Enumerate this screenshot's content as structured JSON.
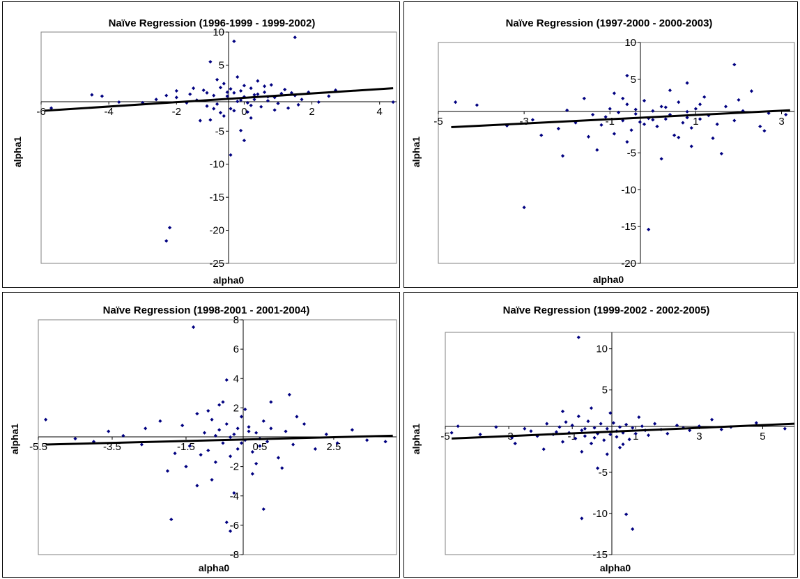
{
  "chart_data": [
    {
      "type": "scatter",
      "title": "Naïve Regression (1996-1999 - 1999-2002)",
      "xlabel": "alpha0",
      "ylabel": "alpha1",
      "xlim": [
        -6,
        4.5
      ],
      "ylim": [
        -25,
        10
      ],
      "xticks": [
        -6,
        -4,
        -2,
        0,
        2,
        4
      ],
      "yticks": [
        10,
        5,
        -5,
        -10,
        -15,
        -20,
        -25
      ],
      "marker_color": "#000080",
      "trendline": {
        "x": [
          -5.9,
          4.4
        ],
        "y": [
          -1.9,
          1.5
        ],
        "color": "#000000"
      },
      "points": [
        [
          -0.3,
          8.6
        ],
        [
          1.5,
          9.2
        ],
        [
          -1.0,
          5.5
        ],
        [
          -2.3,
          -21.6
        ],
        [
          -2.2,
          -19.6
        ],
        [
          -0.4,
          -8.6
        ],
        [
          0.0,
          -6.4
        ],
        [
          -4.5,
          0.5
        ],
        [
          -4.2,
          0.3
        ],
        [
          -3.7,
          -0.6
        ],
        [
          -5.7,
          -1.5
        ],
        [
          -2.6,
          -0.2
        ],
        [
          -2.0,
          0.1
        ],
        [
          -1.6,
          0.6
        ],
        [
          -1.4,
          -0.3
        ],
        [
          -1.2,
          1.2
        ],
        [
          -1.1,
          -1.2
        ],
        [
          -0.9,
          0.4
        ],
        [
          -0.8,
          -0.9
        ],
        [
          -0.7,
          1.6
        ],
        [
          -0.6,
          2.2
        ],
        [
          -0.5,
          0.3
        ],
        [
          -0.4,
          -1.6
        ],
        [
          -0.3,
          0.8
        ],
        [
          -0.2,
          -0.5
        ],
        [
          -0.1,
          1.1
        ],
        [
          0.0,
          0.2
        ],
        [
          0.1,
          -0.7
        ],
        [
          0.2,
          1.5
        ],
        [
          0.3,
          -0.2
        ],
        [
          0.4,
          0.6
        ],
        [
          0.5,
          -1.3
        ],
        [
          0.6,
          0.9
        ],
        [
          0.7,
          -0.4
        ],
        [
          0.8,
          2.0
        ],
        [
          0.9,
          0.1
        ],
        [
          1.0,
          -0.8
        ],
        [
          1.1,
          0.7
        ],
        [
          1.3,
          -1.5
        ],
        [
          1.5,
          0.4
        ],
        [
          1.7,
          -0.2
        ],
        [
          1.9,
          0.9
        ],
        [
          2.2,
          -0.6
        ],
        [
          2.5,
          0.3
        ],
        [
          2.7,
          1.2
        ],
        [
          4.4,
          -0.6
        ],
        [
          -1.3,
          -3.4
        ],
        [
          -1.0,
          -3.3
        ],
        [
          -0.6,
          -2.7
        ],
        [
          -0.1,
          -4.9
        ],
        [
          0.2,
          -3.0
        ],
        [
          -0.8,
          2.8
        ],
        [
          -0.2,
          3.2
        ],
        [
          0.4,
          2.6
        ],
        [
          -0.7,
          -2.2
        ],
        [
          0.1,
          -2.1
        ],
        [
          -2.0,
          1.1
        ],
        [
          -1.7,
          -0.7
        ],
        [
          -1.5,
          1.5
        ],
        [
          -0.9,
          -1.6
        ],
        [
          0.6,
          1.8
        ],
        [
          1.2,
          1.3
        ],
        [
          1.6,
          -1.0
        ],
        [
          -0.3,
          -1.9
        ],
        [
          0.0,
          1.9
        ],
        [
          0.3,
          0.5
        ],
        [
          -0.5,
          0.9
        ],
        [
          0.7,
          0.2
        ],
        [
          -0.1,
          -0.3
        ],
        [
          0.2,
          -1.1
        ],
        [
          -1.1,
          0.8
        ],
        [
          1.4,
          0.8
        ],
        [
          -0.4,
          1.4
        ],
        [
          0.9,
          -1.8
        ],
        [
          -3.0,
          -0.7
        ],
        [
          -2.3,
          0.4
        ]
      ]
    },
    {
      "type": "scatter",
      "title": "Naïve Regression (1997-2000 - 2000-2003)",
      "xlabel": "alpha0",
      "ylabel": "alpha1",
      "xlim": [
        -5,
        3.3
      ],
      "ylim": [
        -20,
        10
      ],
      "xticks": [
        -5,
        -3,
        -1,
        1,
        3
      ],
      "yticks": [
        10,
        5,
        -5,
        -10,
        -15,
        -20
      ],
      "marker_color": "#000080",
      "trendline": {
        "x": [
          -4.7,
          3.2
        ],
        "y": [
          -1.5,
          0.8
        ],
        "color": "#000000"
      },
      "points": [
        [
          -4.6,
          1.9
        ],
        [
          -4.1,
          1.5
        ],
        [
          -3.0,
          -12.4
        ],
        [
          -2.1,
          -5.4
        ],
        [
          -0.6,
          5.5
        ],
        [
          0.8,
          4.5
        ],
        [
          1.9,
          7.0
        ],
        [
          -0.1,
          -15.4
        ],
        [
          -2.6,
          -2.6
        ],
        [
          -2.2,
          -1.7
        ],
        [
          -1.8,
          -0.9
        ],
        [
          -1.6,
          2.4
        ],
        [
          -1.4,
          0.2
        ],
        [
          -1.2,
          -1.2
        ],
        [
          -1.0,
          1.0
        ],
        [
          -0.9,
          -2.4
        ],
        [
          -0.8,
          0.5
        ],
        [
          -0.7,
          -0.6
        ],
        [
          -0.6,
          1.6
        ],
        [
          -0.5,
          -1.9
        ],
        [
          -0.4,
          0.3
        ],
        [
          -0.3,
          -0.8
        ],
        [
          -0.2,
          2.1
        ],
        [
          -0.1,
          -0.3
        ],
        [
          0.0,
          0.7
        ],
        [
          0.1,
          -1.4
        ],
        [
          0.2,
          1.3
        ],
        [
          0.3,
          -0.4
        ],
        [
          0.4,
          0.2
        ],
        [
          0.5,
          -2.6
        ],
        [
          0.6,
          1.9
        ],
        [
          0.7,
          -0.9
        ],
        [
          0.8,
          0.6
        ],
        [
          0.9,
          -1.6
        ],
        [
          1.0,
          1.0
        ],
        [
          1.1,
          -0.4
        ],
        [
          1.2,
          2.6
        ],
        [
          1.3,
          0.1
        ],
        [
          1.5,
          -1.1
        ],
        [
          1.7,
          1.3
        ],
        [
          1.9,
          -0.6
        ],
        [
          2.1,
          0.7
        ],
        [
          2.3,
          3.4
        ],
        [
          2.5,
          -1.4
        ],
        [
          2.7,
          0.4
        ],
        [
          3.1,
          0.2
        ],
        [
          -1.3,
          -4.6
        ],
        [
          -0.6,
          -3.5
        ],
        [
          0.2,
          -5.8
        ],
        [
          0.9,
          -4.1
        ],
        [
          1.6,
          -5.1
        ],
        [
          -2.0,
          0.8
        ],
        [
          -1.5,
          -2.8
        ],
        [
          -0.9,
          3.1
        ],
        [
          0.4,
          3.5
        ],
        [
          1.4,
          -3.0
        ],
        [
          2.0,
          2.2
        ],
        [
          -0.7,
          2.4
        ],
        [
          0.6,
          -2.9
        ],
        [
          1.1,
          1.6
        ],
        [
          -0.2,
          -1.1
        ],
        [
          0.3,
          1.2
        ],
        [
          -0.4,
          0.9
        ],
        [
          0.0,
          -0.5
        ],
        [
          0.8,
          -0.2
        ],
        [
          -1.1,
          -0.1
        ],
        [
          2.6,
          -2.0
        ],
        [
          -3.4,
          -1.3
        ],
        [
          -2.8,
          -0.5
        ]
      ]
    },
    {
      "type": "scatter",
      "title": "Naïve Regression (1998-2001 - 2001-2004)",
      "xlabel": "alpha0",
      "ylabel": "alpha1",
      "xlim": [
        -5.5,
        4.2
      ],
      "ylim": [
        -8,
        8
      ],
      "xticks": [
        -5.5,
        -3.5,
        -1.5,
        0.5,
        2.5
      ],
      "yticks": [
        8,
        6,
        4,
        2,
        -2,
        -4,
        -6,
        -8
      ],
      "marker_color": "#000080",
      "trendline": {
        "x": [
          -5.3,
          4.1
        ],
        "y": [
          -0.5,
          0.1
        ],
        "color": "#000000"
      },
      "points": [
        [
          -5.3,
          1.2
        ],
        [
          -4.5,
          -0.1
        ],
        [
          -3.6,
          0.4
        ],
        [
          -2.6,
          0.6
        ],
        [
          -2.2,
          1.1
        ],
        [
          -2.0,
          -2.3
        ],
        [
          -1.9,
          -5.6
        ],
        [
          -1.3,
          7.5
        ],
        [
          -0.5,
          2.4
        ],
        [
          -0.4,
          3.9
        ],
        [
          -0.3,
          -6.4
        ],
        [
          -0.4,
          -5.8
        ],
        [
          0.6,
          -4.9
        ],
        [
          1.3,
          2.9
        ],
        [
          3.9,
          -0.3
        ],
        [
          -1.6,
          0.8
        ],
        [
          -1.4,
          -0.6
        ],
        [
          -1.2,
          1.6
        ],
        [
          -1.1,
          -1.2
        ],
        [
          -1.0,
          0.3
        ],
        [
          -0.9,
          -0.9
        ],
        [
          -0.8,
          1.2
        ],
        [
          -0.7,
          -1.7
        ],
        [
          -0.6,
          0.5
        ],
        [
          -0.5,
          -0.4
        ],
        [
          -0.4,
          0.9
        ],
        [
          -0.3,
          -1.3
        ],
        [
          -0.2,
          0.2
        ],
        [
          -0.1,
          -0.8
        ],
        [
          0.0,
          1.4
        ],
        [
          0.1,
          -0.2
        ],
        [
          0.2,
          0.7
        ],
        [
          0.3,
          -1.0
        ],
        [
          0.4,
          0.3
        ],
        [
          0.5,
          -0.6
        ],
        [
          0.6,
          1.1
        ],
        [
          0.7,
          -0.3
        ],
        [
          0.8,
          0.6
        ],
        [
          1.0,
          -1.4
        ],
        [
          1.2,
          0.4
        ],
        [
          1.4,
          -0.5
        ],
        [
          1.7,
          0.9
        ],
        [
          2.0,
          -0.8
        ],
        [
          2.3,
          0.2
        ],
        [
          2.6,
          -0.4
        ],
        [
          3.0,
          0.5
        ],
        [
          3.4,
          -0.2
        ],
        [
          -1.2,
          -3.3
        ],
        [
          -0.8,
          -2.9
        ],
        [
          -0.2,
          -3.8
        ],
        [
          0.3,
          -2.5
        ],
        [
          -0.6,
          2.2
        ],
        [
          0.1,
          1.9
        ],
        [
          0.8,
          2.4
        ],
        [
          -1.5,
          -2.0
        ],
        [
          1.1,
          -2.1
        ],
        [
          -2.7,
          -0.5
        ],
        [
          -3.2,
          0.1
        ],
        [
          -4.0,
          -0.3
        ],
        [
          -0.9,
          1.8
        ],
        [
          0.4,
          -1.8
        ],
        [
          -0.3,
          0.0
        ],
        [
          0.0,
          -0.4
        ],
        [
          0.2,
          0.4
        ],
        [
          -0.1,
          0.6
        ],
        [
          0.5,
          -0.1
        ],
        [
          -0.7,
          0.1
        ],
        [
          1.5,
          1.4
        ],
        [
          -1.8,
          -1.1
        ]
      ]
    },
    {
      "type": "scatter",
      "title": "Naïve Regression (1999-2002 - 2002-2005)",
      "xlabel": "alpha0",
      "ylabel": "alpha1",
      "xlim": [
        -5,
        6
      ],
      "ylim": [
        -15,
        12
      ],
      "xticks": [
        -5,
        -3,
        -1,
        1,
        3,
        5
      ],
      "yticks": [
        10,
        5,
        -5,
        -10,
        -15
      ],
      "marker_color": "#000080",
      "trendline": {
        "x": [
          -4.8,
          6.0
        ],
        "y": [
          -0.9,
          0.9
        ],
        "color": "#000000"
      },
      "points": [
        [
          -0.8,
          11.4
        ],
        [
          -0.7,
          -10.6
        ],
        [
          0.7,
          -10.1
        ],
        [
          0.9,
          -11.9
        ],
        [
          -4.8,
          -0.2
        ],
        [
          -4.6,
          0.6
        ],
        [
          -3.9,
          -0.4
        ],
        [
          -3.4,
          0.5
        ],
        [
          -2.9,
          -0.8
        ],
        [
          -2.8,
          -1.5
        ],
        [
          -2.5,
          0.3
        ],
        [
          -2.1,
          -0.6
        ],
        [
          -1.8,
          0.9
        ],
        [
          -1.6,
          -0.4
        ],
        [
          -1.4,
          0.5
        ],
        [
          -1.3,
          -1.3
        ],
        [
          -1.2,
          1.1
        ],
        [
          -1.1,
          -0.2
        ],
        [
          -1.0,
          0.7
        ],
        [
          -0.9,
          -0.9
        ],
        [
          -0.8,
          1.8
        ],
        [
          -0.7,
          0.1
        ],
        [
          -0.6,
          -0.6
        ],
        [
          -0.5,
          1.2
        ],
        [
          -0.4,
          -1.5
        ],
        [
          -0.3,
          0.4
        ],
        [
          -0.2,
          -0.3
        ],
        [
          -0.1,
          0.9
        ],
        [
          0.0,
          -1.1
        ],
        [
          0.1,
          0.3
        ],
        [
          0.2,
          -0.4
        ],
        [
          0.3,
          1.0
        ],
        [
          0.4,
          -0.7
        ],
        [
          0.5,
          0.5
        ],
        [
          0.6,
          -0.2
        ],
        [
          0.7,
          0.8
        ],
        [
          0.8,
          -1.0
        ],
        [
          0.9,
          0.4
        ],
        [
          1.0,
          -0.3
        ],
        [
          1.2,
          0.6
        ],
        [
          1.4,
          -0.5
        ],
        [
          1.6,
          0.9
        ],
        [
          1.8,
          0.2
        ],
        [
          2.0,
          -0.3
        ],
        [
          2.3,
          0.7
        ],
        [
          2.7,
          0.1
        ],
        [
          3.0,
          0.6
        ],
        [
          3.4,
          1.4
        ],
        [
          4.0,
          0.5
        ],
        [
          4.8,
          1.0
        ],
        [
          5.7,
          0.3
        ],
        [
          -1.3,
          2.4
        ],
        [
          -0.4,
          2.8
        ],
        [
          0.2,
          2.2
        ],
        [
          -0.7,
          -2.5
        ],
        [
          0.1,
          -2.8
        ],
        [
          0.5,
          -2.0
        ],
        [
          -0.2,
          -4.5
        ],
        [
          -1.9,
          -2.2
        ],
        [
          0.6,
          -1.6
        ],
        [
          1.1,
          1.7
        ],
        [
          -1.5,
          -0.1
        ],
        [
          -0.3,
          -0.8
        ],
        [
          0.4,
          0.0
        ],
        [
          -0.6,
          0.3
        ],
        [
          1.3,
          0.1
        ],
        [
          -2.3,
          0.0
        ],
        [
          2.5,
          0.4
        ],
        [
          3.7,
          0.2
        ]
      ]
    }
  ]
}
